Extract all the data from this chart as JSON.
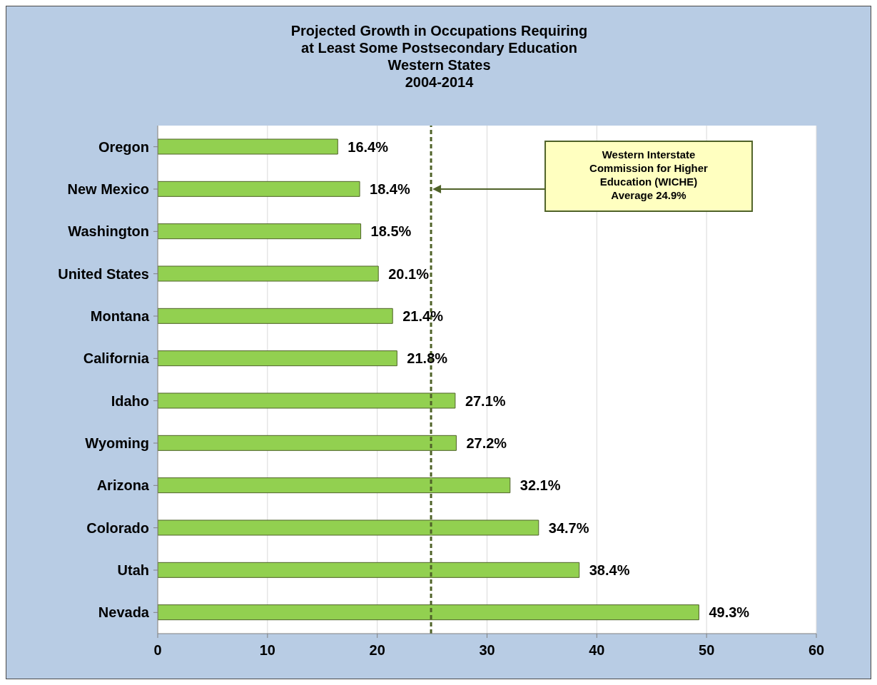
{
  "chart_data": {
    "type": "bar",
    "orientation": "horizontal",
    "title": "Projected Growth in Occupations Requiring\nat Least Some Postsecondary Education\nWestern States\n2004-2014",
    "categories": [
      "Oregon",
      "New Mexico",
      "Washington",
      "United States",
      "Montana",
      "California",
      "Idaho",
      "Wyoming",
      "Arizona",
      "Colorado",
      "Utah",
      "Nevada"
    ],
    "values": [
      16.4,
      18.4,
      18.5,
      20.1,
      21.4,
      21.8,
      27.1,
      27.2,
      32.1,
      34.7,
      38.4,
      49.3
    ],
    "value_labels": [
      "16.4%",
      "18.4%",
      "18.5%",
      "20.1%",
      "21.4%",
      "21.8%",
      "27.1%",
      "27.2%",
      "32.1%",
      "34.7%",
      "38.4%",
      "49.3%"
    ],
    "color": "#92d050",
    "xlim": [
      0,
      60
    ],
    "xticks": [
      0,
      10,
      20,
      30,
      40,
      50,
      60
    ],
    "grid": "x",
    "legend": false,
    "annotations": [
      "Western Interstate Commission for Higher Education (WICHE) Average 24.9%"
    ],
    "ref_lines": [
      {
        "axis": "x",
        "value": 24.9,
        "color": "#4f6228",
        "line_style": "dashed"
      }
    ]
  }
}
